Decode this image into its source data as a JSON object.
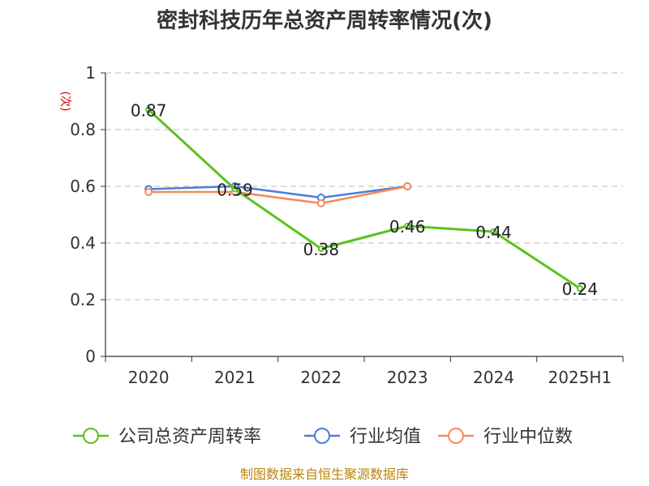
{
  "chart_data": {
    "type": "line",
    "title": "密封科技历年总资产周转率情况(次)",
    "y_unit": "(次)",
    "categories": [
      "2020",
      "2021",
      "2022",
      "2023",
      "2024",
      "2025H1"
    ],
    "ylim": [
      0,
      1
    ],
    "yticks": [
      "0",
      "0.2",
      "0.4",
      "0.6",
      "0.8",
      "1"
    ],
    "grid": true,
    "legend_position": "bottom",
    "series": [
      {
        "name": "公司总资产周转率",
        "color": "#5bc21f",
        "values": [
          0.87,
          0.59,
          0.38,
          0.46,
          0.44,
          0.24
        ],
        "labels": [
          "0.87",
          "0.59",
          "0.38",
          "0.46",
          "0.44",
          "0.24"
        ]
      },
      {
        "name": "行业均值",
        "color": "#4a7fd6",
        "values": [
          0.59,
          0.6,
          0.56,
          0.6,
          null,
          null
        ]
      },
      {
        "name": "行业中位数",
        "color": "#f5895c",
        "values": [
          0.58,
          0.58,
          0.54,
          0.6,
          null,
          null
        ]
      }
    ]
  },
  "source": "制图数据来自恒生聚源数据库"
}
